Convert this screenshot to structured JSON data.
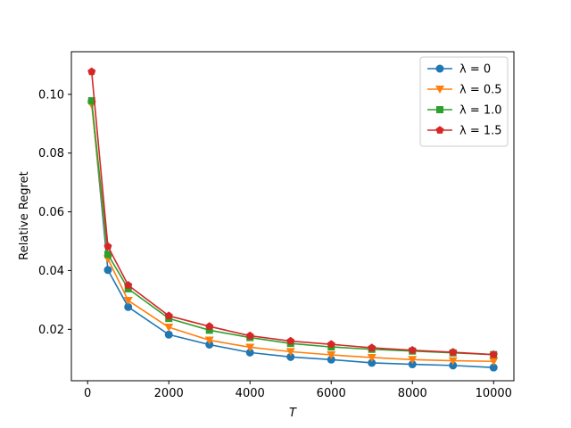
{
  "chart_data": {
    "type": "line",
    "title": "",
    "xlabel": "T",
    "ylabel": "Relative Regret",
    "xlim": [
      -400,
      10500
    ],
    "ylim": [
      0.0025,
      0.1145
    ],
    "xticks": [
      0,
      2000,
      4000,
      6000,
      8000,
      10000
    ],
    "xtick_labels": [
      "0",
      "2000",
      "4000",
      "6000",
      "8000",
      "10000"
    ],
    "yticks": [
      0.02,
      0.04,
      0.06,
      0.08,
      0.1
    ],
    "ytick_labels": [
      "0.02",
      "0.04",
      "0.06",
      "0.08",
      "0.10"
    ],
    "grid": false,
    "legend_position": "top-right",
    "x": [
      100,
      500,
      1000,
      2000,
      3000,
      4000,
      5000,
      6000,
      7000,
      8000,
      9000,
      10000
    ],
    "series": [
      {
        "name": "λ = 0",
        "color": "#1f77b4",
        "marker": "circle",
        "values": [
          0.0975,
          0.0402,
          0.0276,
          0.0182,
          0.0148,
          0.0121,
          0.0106,
          0.0097,
          0.0086,
          0.0081,
          0.0077,
          0.007
        ]
      },
      {
        "name": "λ = 0.5",
        "color": "#ff7f0e",
        "marker": "triangle-down",
        "values": [
          0.0965,
          0.044,
          0.0298,
          0.0207,
          0.0163,
          0.0139,
          0.0124,
          0.0113,
          0.0104,
          0.0097,
          0.0093,
          0.0091
        ]
      },
      {
        "name": "λ = 1.0",
        "color": "#2ca02c",
        "marker": "square",
        "values": [
          0.0978,
          0.0455,
          0.0338,
          0.0237,
          0.0197,
          0.0172,
          0.0152,
          0.014,
          0.0132,
          0.0126,
          0.012,
          0.0114
        ]
      },
      {
        "name": "λ = 1.5",
        "color": "#d62728",
        "marker": "pentagon",
        "values": [
          0.1077,
          0.0482,
          0.035,
          0.0246,
          0.021,
          0.0178,
          0.016,
          0.0149,
          0.0137,
          0.0129,
          0.0122,
          0.0114
        ]
      }
    ]
  }
}
